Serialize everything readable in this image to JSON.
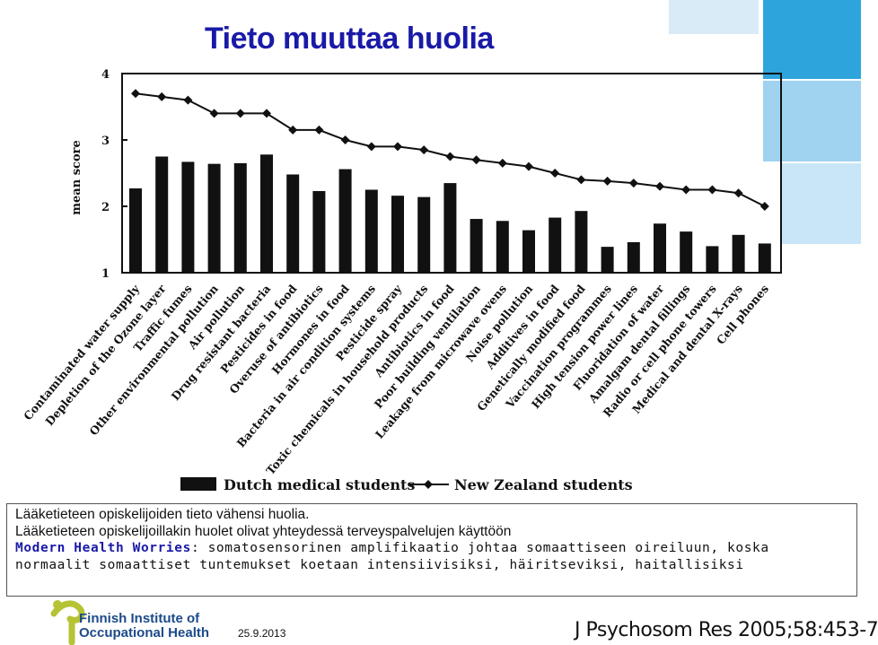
{
  "slide": {
    "title": "Tieto muuttaa huolia",
    "caption": {
      "line1": "Lääketieteen opiskelijoiden tieto vähensi huolia.",
      "line2": "Lääketieteen opiskelijoillakin huolet olivat yhteydessä terveyspalvelujen käyttöön",
      "line3_emph": "Modern Health Worries",
      "line3_rest": ": somatosensorinen amplifikaatio johtaa somaattiseen oireiluun, koska",
      "line4": "normaalit somaattiset tuntemukset koetaan intensiivisiksi, häiritseviksi, haitallisiksi"
    },
    "footer": {
      "date": "25.9.2013",
      "reference": "J Psychosom Res 2005;58:453-7",
      "logo_line1": "Finnish Institute of",
      "logo_line2": "Occupational Health"
    },
    "colors": {
      "title": "#1a1aa8",
      "accent": "#1a1aa8",
      "logo_green": "#b5c335",
      "logo_blue": "#1c4a8a"
    }
  },
  "chart_data": {
    "type": "bar",
    "ylabel": "mean score",
    "ylim": [
      1,
      4
    ],
    "yticks": [
      1,
      2,
      3,
      4
    ],
    "categories": [
      "Contaminated water supply",
      "Depletion of the Ozone layer",
      "Traffic fumes",
      "Other environmental pollution",
      "Air pollution",
      "Drug resistant bacteria",
      "Pesticides in food",
      "Overuse of antibiotics",
      "Hormones in food",
      "Bacteria in air condition systems",
      "Pesticide spray",
      "Toxic chemicals in household products",
      "Antibiotics in food",
      "Poor building ventilation",
      "Leakage from microwave ovens",
      "Noise pollution",
      "Additives in food",
      "Genetically modified food",
      "Vaccination programmes",
      "High tension power lines",
      "Fluoridation of water",
      "Amalgam dental fillings",
      "Radio or cell phone towers",
      "Medical and dental X-rays",
      "Cell phones"
    ],
    "series": [
      {
        "name": "Dutch medical students",
        "kind": "bar",
        "values": [
          2.27,
          2.75,
          2.67,
          2.64,
          2.65,
          2.78,
          2.48,
          2.23,
          2.56,
          2.25,
          2.16,
          2.14,
          2.35,
          1.81,
          1.78,
          1.64,
          1.83,
          1.93,
          1.39,
          1.46,
          1.74,
          1.62,
          1.4,
          1.57,
          1.44
        ]
      },
      {
        "name": "New Zealand students",
        "kind": "line",
        "values": [
          3.7,
          3.65,
          3.6,
          3.4,
          3.4,
          3.4,
          3.15,
          3.15,
          3.0,
          2.9,
          2.9,
          2.85,
          2.75,
          2.7,
          2.65,
          2.6,
          2.5,
          2.4,
          2.38,
          2.35,
          2.3,
          2.25,
          2.25,
          2.2,
          2.0
        ]
      }
    ],
    "legend_position": "bottom",
    "grid": false
  }
}
